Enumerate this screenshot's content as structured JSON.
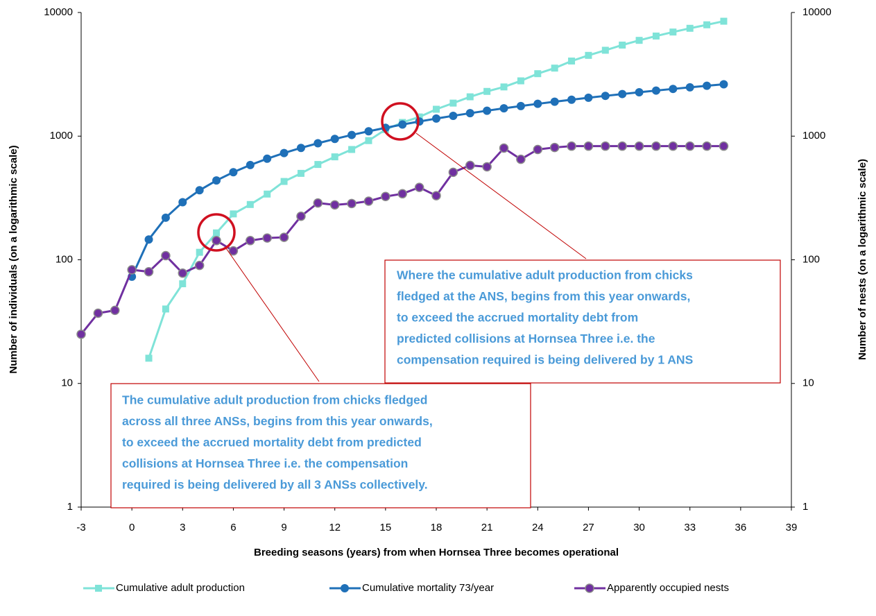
{
  "chart_data": {
    "type": "line",
    "x_label": "Breeding seasons (years) from when Hornsea Three becomes operational",
    "y_label": "Number of individuals (on a logarithmic scale)",
    "y2_label": "Number of nests (on a  logarithmic scale)",
    "log_scale": true,
    "legend": "bottom",
    "xlim": [
      -3,
      39
    ],
    "xticks": [
      -3,
      0,
      3,
      6,
      9,
      12,
      15,
      18,
      21,
      24,
      27,
      30,
      33,
      36,
      39
    ],
    "ylim": [
      1,
      10000
    ],
    "yticks": [
      1,
      10,
      100,
      1000,
      10000
    ],
    "y2lim": [
      1,
      10000
    ],
    "y2ticks": [
      1,
      10,
      100,
      1000,
      10000
    ],
    "series": [
      {
        "name": "Cumulative adult production",
        "color": "#7fe3d8",
        "marker": "square",
        "x": [
          1,
          2,
          3,
          4,
          5,
          6,
          7,
          8,
          9,
          10,
          11,
          12,
          13,
          14,
          15,
          16,
          17,
          18,
          19,
          20,
          21,
          22,
          23,
          24,
          25,
          26,
          27,
          28,
          29,
          30,
          31,
          32,
          33,
          34,
          35
        ],
        "values": [
          16,
          40,
          64,
          115,
          165,
          235,
          280,
          340,
          430,
          500,
          590,
          680,
          780,
          920,
          1130,
          1290,
          1430,
          1650,
          1850,
          2080,
          2300,
          2500,
          2800,
          3200,
          3550,
          4050,
          4500,
          4950,
          5450,
          5950,
          6450,
          6950,
          7450,
          7950,
          8500
        ]
      },
      {
        "name": "Cumulative mortality 73/year",
        "color": "#1f70b8",
        "marker": "circle",
        "x": [
          0,
          1,
          2,
          3,
          4,
          5,
          6,
          7,
          8,
          9,
          10,
          11,
          12,
          13,
          14,
          15,
          16,
          17,
          18,
          19,
          20,
          21,
          22,
          23,
          24,
          25,
          26,
          27,
          28,
          29,
          30,
          31,
          32,
          33,
          34,
          35
        ],
        "values": [
          73,
          146,
          219,
          292,
          365,
          438,
          511,
          584,
          657,
          730,
          803,
          876,
          949,
          1022,
          1095,
          1168,
          1241,
          1314,
          1387,
          1460,
          1533,
          1606,
          1679,
          1752,
          1825,
          1898,
          1971,
          2044,
          2117,
          2190,
          2263,
          2336,
          2409,
          2482,
          2555,
          2628
        ]
      },
      {
        "name": "Apparently occupied nests",
        "color": "#7030a0",
        "marker": "circle-edge",
        "axis": "y2",
        "x": [
          -3,
          -2,
          -1,
          0,
          1,
          2,
          3,
          4,
          5,
          6,
          7,
          8,
          9,
          10,
          11,
          12,
          13,
          14,
          15,
          16,
          17,
          18,
          19,
          20,
          21,
          22,
          23,
          24,
          25,
          26,
          27,
          28,
          29,
          30,
          31,
          32,
          33,
          34,
          35
        ],
        "values": [
          25,
          37,
          39,
          83,
          80,
          108,
          78,
          90,
          143,
          118,
          143,
          150,
          152,
          225,
          288,
          278,
          285,
          298,
          325,
          342,
          385,
          330,
          510,
          580,
          565,
          800,
          650,
          780,
          810,
          830,
          830,
          830,
          830,
          830,
          830,
          830,
          830,
          830,
          830
        ]
      }
    ],
    "annotations": [
      {
        "lines": [
          "Where the cumulative adult production from chicks",
          "fledged at the ANS, begins from this year onwards,",
          "to exceed the accrued mortality debt from",
          "predicted collisions at Hornsea Three i.e. the",
          "compensation required is being delivered by 1 ANS"
        ]
      },
      {
        "lines": [
          "The cumulative adult production from chicks fledged",
          "across all three ANSs, begins from this year onwards,",
          "to exceed the accrued mortality debt from predicted",
          "collisions at Hornsea Three i.e. the compensation",
          "required is being delivered by all 3 ANSs collectively."
        ]
      }
    ]
  }
}
